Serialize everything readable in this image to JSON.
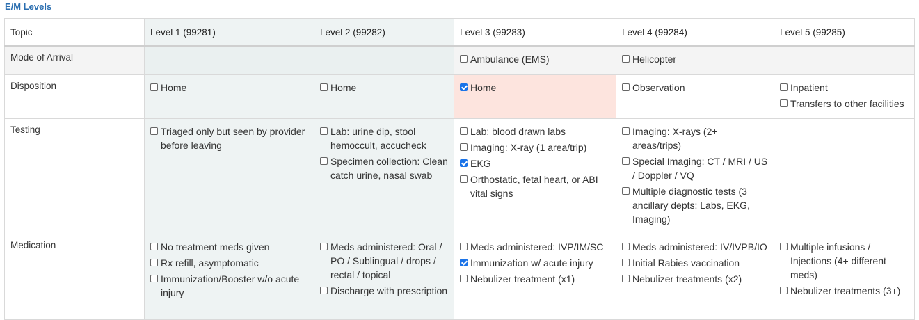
{
  "section_title": "E/M Levels",
  "columns": [
    "Topic",
    "Level 1 (99281)",
    "Level 2 (99282)",
    "Level 3 (99283)",
    "Level 4 (99284)",
    "Level 5 (99285)"
  ],
  "rows": [
    {
      "topic": "Mode of Arrival",
      "cells": [
        [],
        [],
        [
          {
            "label": "Ambulance (EMS)",
            "checked": false
          }
        ],
        [
          {
            "label": "Helicopter",
            "checked": false
          }
        ],
        []
      ]
    },
    {
      "topic": "Disposition",
      "cells": [
        [
          {
            "label": "Home",
            "checked": false
          }
        ],
        [
          {
            "label": "Home",
            "checked": false
          }
        ],
        [
          {
            "label": "Home",
            "checked": true
          }
        ],
        [
          {
            "label": "Observation",
            "checked": false
          }
        ],
        [
          {
            "label": "Inpatient",
            "checked": false
          },
          {
            "label": "Transfers to other facilities",
            "checked": false
          }
        ]
      ]
    },
    {
      "topic": "Testing",
      "cells": [
        [
          {
            "label": "Triaged only but seen by provider before leaving",
            "checked": false
          }
        ],
        [
          {
            "label": "Lab: urine dip, stool hemoccult, accucheck",
            "checked": false
          },
          {
            "label": "Specimen collection: Clean catch urine, nasal swab",
            "checked": false
          }
        ],
        [
          {
            "label": "Lab: blood drawn labs",
            "checked": false
          },
          {
            "label": "Imaging: X-ray (1 area/trip)",
            "checked": false
          },
          {
            "label": "EKG",
            "checked": true
          },
          {
            "label": "Orthostatic, fetal heart, or ABI vital signs",
            "checked": false
          }
        ],
        [
          {
            "label": "Imaging: X-rays (2+ areas/trips)",
            "checked": false
          },
          {
            "label": "Special Imaging: CT / MRI / US / Doppler / VQ",
            "checked": false
          },
          {
            "label": "Multiple diagnostic tests (3 ancillary depts: Labs, EKG, Imaging)",
            "checked": false
          }
        ],
        []
      ]
    },
    {
      "topic": "Medication",
      "cells": [
        [
          {
            "label": "No treatment meds given",
            "checked": false
          },
          {
            "label": "Rx refill, asymptomatic",
            "checked": false
          },
          {
            "label": "Immunization/Booster w/o acute injury",
            "checked": false
          }
        ],
        [
          {
            "label": "Meds administered: Oral / PO / Sublingual / drops / rectal / topical",
            "checked": false
          },
          {
            "label": "Discharge with prescription",
            "checked": false
          }
        ],
        [
          {
            "label": "Meds administered: IVP/IM/SC",
            "checked": false
          },
          {
            "label": "Immunization w/ acute injury",
            "checked": true
          },
          {
            "label": "Nebulizer treatment (x1)",
            "checked": false
          }
        ],
        [
          {
            "label": "Meds administered: IV/IVPB/IO",
            "checked": false
          },
          {
            "label": "Initial Rabies vaccination",
            "checked": false
          },
          {
            "label": "Nebulizer treatments (x2)",
            "checked": false
          }
        ],
        [
          {
            "label": "Multiple infusions / Injections (4+ different meds)",
            "checked": false
          },
          {
            "label": "Nebulizer treatments (3+)",
            "checked": false
          }
        ]
      ]
    }
  ],
  "colors": {
    "title": "#2a6eb0",
    "shade": "#eef3f3",
    "highlight": "#fde4de",
    "checkbox_checked": "#1a73e8"
  }
}
